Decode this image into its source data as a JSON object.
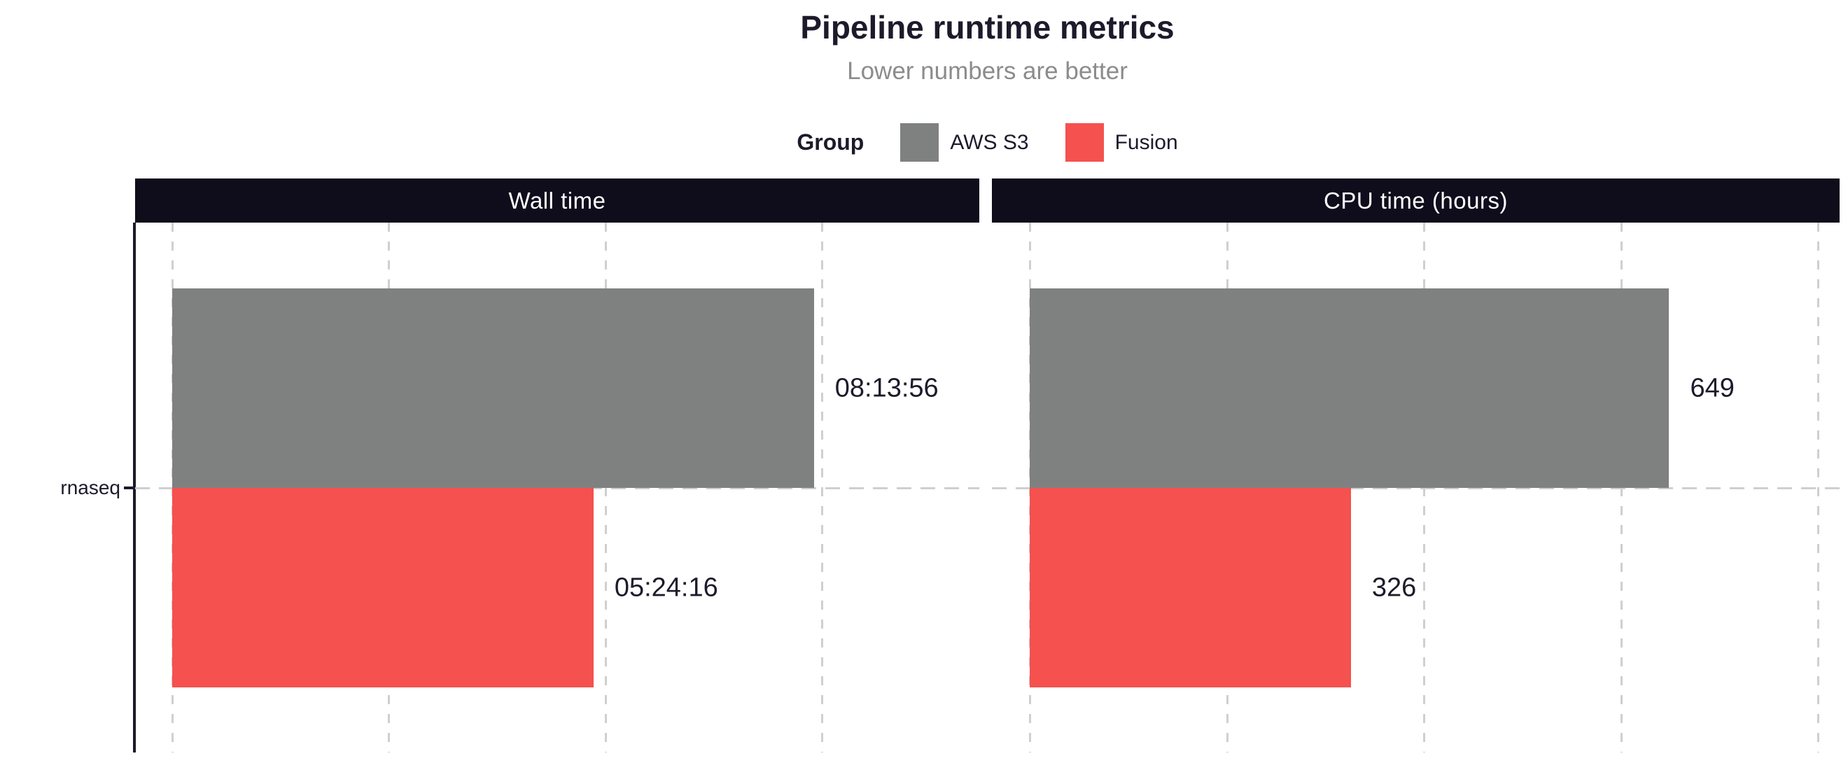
{
  "title": "Pipeline runtime metrics",
  "subtitle": "Lower numbers are better",
  "legend": {
    "title": "Group",
    "items": [
      {
        "label": "AWS S3",
        "color": "#7F8180"
      },
      {
        "label": "Fusion",
        "color": "#F4514F"
      }
    ]
  },
  "category_axis": {
    "label": "rnaseq"
  },
  "colors": {
    "title_text": "#1D1A2B",
    "subtitle_text": "#8C8C8C",
    "facet_strip_bg": "#0F0C1B",
    "facet_strip_text": "#FFFFFF",
    "gridline": "#CFCFCF",
    "axis_line": "#1D1A2B",
    "aws_s3_bar": "#7F8180",
    "fusion_bar": "#F4514F"
  },
  "chart_data": {
    "type": "bar",
    "orientation": "horizontal",
    "categories": [
      "rnaseq"
    ],
    "groups": [
      "AWS S3",
      "Fusion"
    ],
    "legend_position": "top",
    "grid": "dashed-vertical",
    "panels": [
      {
        "title": "Wall time",
        "unit": "seconds",
        "xlim": [
          0,
          30000
        ],
        "ticks": [
          0,
          10000,
          20000,
          30000
        ],
        "series": [
          {
            "name": "AWS S3",
            "category": "rnaseq",
            "value": 29636,
            "label": "08:13:56",
            "color": "#7F8180"
          },
          {
            "name": "Fusion",
            "category": "rnaseq",
            "value": 19456,
            "label": "05:24:16",
            "color": "#F4514F"
          }
        ]
      },
      {
        "title": "CPU time (hours)",
        "unit": "hours",
        "xlim": [
          0,
          800
        ],
        "ticks": [
          0,
          200,
          400,
          600,
          800
        ],
        "series": [
          {
            "name": "AWS S3",
            "category": "rnaseq",
            "value": 649,
            "label": "649",
            "color": "#7F8180"
          },
          {
            "name": "Fusion",
            "category": "rnaseq",
            "value": 326,
            "label": "326",
            "color": "#F4514F"
          }
        ]
      }
    ]
  }
}
